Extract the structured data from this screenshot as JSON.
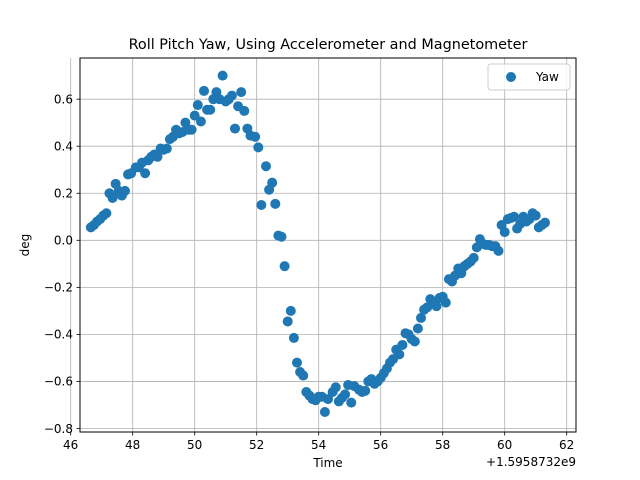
{
  "chart_data": {
    "type": "scatter",
    "title": "Roll Pitch Yaw, Using Accelerometer and Magnetometer",
    "xlabel": "Time",
    "ylabel": "deg",
    "x_offset_label": "+1.5958732e9",
    "xlim": [
      46.3,
      62.3
    ],
    "ylim": [
      -0.815,
      0.775
    ],
    "xticks": [
      46,
      48,
      50,
      52,
      54,
      56,
      58,
      60,
      62
    ],
    "yticks": [
      -0.8,
      -0.6,
      -0.4,
      -0.2,
      0.0,
      0.2,
      0.4,
      0.6
    ],
    "xtick_labels": [
      "46",
      "48",
      "50",
      "52",
      "54",
      "56",
      "58",
      "60",
      "62"
    ],
    "ytick_labels": [
      "−0.8",
      "−0.6",
      "−0.4",
      "−0.2",
      "0.0",
      "0.2",
      "0.4",
      "0.6"
    ],
    "grid": true,
    "legend_position": "top-right",
    "series": [
      {
        "name": "Yaw",
        "color": "#1f77b4",
        "points": [
          [
            46.65,
            0.055
          ],
          [
            46.75,
            0.065
          ],
          [
            46.85,
            0.08
          ],
          [
            46.95,
            0.09
          ],
          [
            47.05,
            0.105
          ],
          [
            47.15,
            0.115
          ],
          [
            47.25,
            0.2
          ],
          [
            47.35,
            0.18
          ],
          [
            47.45,
            0.24
          ],
          [
            47.55,
            0.21
          ],
          [
            47.65,
            0.19
          ],
          [
            47.75,
            0.21
          ],
          [
            47.85,
            0.28
          ],
          [
            47.95,
            0.285
          ],
          [
            48.1,
            0.31
          ],
          [
            48.2,
            0.31
          ],
          [
            48.3,
            0.33
          ],
          [
            48.4,
            0.285
          ],
          [
            48.5,
            0.34
          ],
          [
            48.6,
            0.355
          ],
          [
            48.7,
            0.365
          ],
          [
            48.8,
            0.355
          ],
          [
            48.9,
            0.39
          ],
          [
            49.0,
            0.385
          ],
          [
            49.1,
            0.39
          ],
          [
            49.2,
            0.43
          ],
          [
            49.3,
            0.44
          ],
          [
            49.4,
            0.47
          ],
          [
            49.5,
            0.455
          ],
          [
            49.6,
            0.46
          ],
          [
            49.7,
            0.5
          ],
          [
            49.8,
            0.47
          ],
          [
            49.9,
            0.47
          ],
          [
            50.0,
            0.53
          ],
          [
            50.1,
            0.575
          ],
          [
            50.2,
            0.505
          ],
          [
            50.3,
            0.635
          ],
          [
            50.4,
            0.555
          ],
          [
            50.5,
            0.555
          ],
          [
            50.6,
            0.6
          ],
          [
            50.7,
            0.63
          ],
          [
            50.8,
            0.6
          ],
          [
            50.9,
            0.7
          ],
          [
            51.0,
            0.59
          ],
          [
            51.1,
            0.6
          ],
          [
            51.2,
            0.615
          ],
          [
            51.3,
            0.475
          ],
          [
            51.4,
            0.57
          ],
          [
            51.5,
            0.63
          ],
          [
            51.6,
            0.55
          ],
          [
            51.7,
            0.475
          ],
          [
            51.8,
            0.445
          ],
          [
            51.95,
            0.44
          ],
          [
            52.05,
            0.395
          ],
          [
            52.15,
            0.15
          ],
          [
            52.3,
            0.315
          ],
          [
            52.4,
            0.215
          ],
          [
            52.5,
            0.245
          ],
          [
            52.6,
            0.155
          ],
          [
            52.7,
            0.02
          ],
          [
            52.8,
            0.015
          ],
          [
            52.9,
            -0.11
          ],
          [
            53.0,
            -0.345
          ],
          [
            53.1,
            -0.3
          ],
          [
            53.2,
            -0.415
          ],
          [
            53.3,
            -0.52
          ],
          [
            53.4,
            -0.56
          ],
          [
            53.5,
            -0.575
          ],
          [
            53.6,
            -0.645
          ],
          [
            53.7,
            -0.66
          ],
          [
            53.8,
            -0.675
          ],
          [
            53.9,
            -0.68
          ],
          [
            54.0,
            -0.665
          ],
          [
            54.1,
            -0.665
          ],
          [
            54.2,
            -0.73
          ],
          [
            54.3,
            -0.675
          ],
          [
            54.45,
            -0.645
          ],
          [
            54.55,
            -0.625
          ],
          [
            54.65,
            -0.685
          ],
          [
            54.75,
            -0.67
          ],
          [
            54.85,
            -0.655
          ],
          [
            54.95,
            -0.615
          ],
          [
            55.05,
            -0.69
          ],
          [
            55.15,
            -0.62
          ],
          [
            55.3,
            -0.635
          ],
          [
            55.4,
            -0.645
          ],
          [
            55.5,
            -0.64
          ],
          [
            55.6,
            -0.6
          ],
          [
            55.7,
            -0.59
          ],
          [
            55.8,
            -0.61
          ],
          [
            55.9,
            -0.6
          ],
          [
            56.0,
            -0.585
          ],
          [
            56.1,
            -0.565
          ],
          [
            56.2,
            -0.545
          ],
          [
            56.3,
            -0.52
          ],
          [
            56.4,
            -0.505
          ],
          [
            56.5,
            -0.465
          ],
          [
            56.6,
            -0.485
          ],
          [
            56.7,
            -0.445
          ],
          [
            56.8,
            -0.395
          ],
          [
            56.9,
            -0.4
          ],
          [
            57.0,
            -0.42
          ],
          [
            57.1,
            -0.43
          ],
          [
            57.2,
            -0.375
          ],
          [
            57.3,
            -0.33
          ],
          [
            57.4,
            -0.295
          ],
          [
            57.5,
            -0.285
          ],
          [
            57.6,
            -0.25
          ],
          [
            57.7,
            -0.265
          ],
          [
            57.8,
            -0.28
          ],
          [
            57.9,
            -0.245
          ],
          [
            58.0,
            -0.24
          ],
          [
            58.1,
            -0.265
          ],
          [
            58.2,
            -0.165
          ],
          [
            58.3,
            -0.175
          ],
          [
            58.4,
            -0.15
          ],
          [
            58.5,
            -0.12
          ],
          [
            58.6,
            -0.14
          ],
          [
            58.7,
            -0.11
          ],
          [
            58.8,
            -0.1
          ],
          [
            58.9,
            -0.09
          ],
          [
            59.0,
            -0.075
          ],
          [
            59.1,
            -0.03
          ],
          [
            59.2,
            0.005
          ],
          [
            59.3,
            -0.015
          ],
          [
            59.4,
            -0.02
          ],
          [
            59.5,
            -0.02
          ],
          [
            59.6,
            -0.025
          ],
          [
            59.7,
            -0.025
          ],
          [
            59.8,
            -0.045
          ],
          [
            59.9,
            0.065
          ],
          [
            60.0,
            0.035
          ],
          [
            60.1,
            0.09
          ],
          [
            60.2,
            0.095
          ],
          [
            60.3,
            0.1
          ],
          [
            60.4,
            0.05
          ],
          [
            60.5,
            0.07
          ],
          [
            60.6,
            0.1
          ],
          [
            60.7,
            0.08
          ],
          [
            60.8,
            0.09
          ],
          [
            60.9,
            0.115
          ],
          [
            61.0,
            0.105
          ],
          [
            61.1,
            0.055
          ],
          [
            61.2,
            0.065
          ],
          [
            61.3,
            0.075
          ]
        ]
      }
    ]
  }
}
